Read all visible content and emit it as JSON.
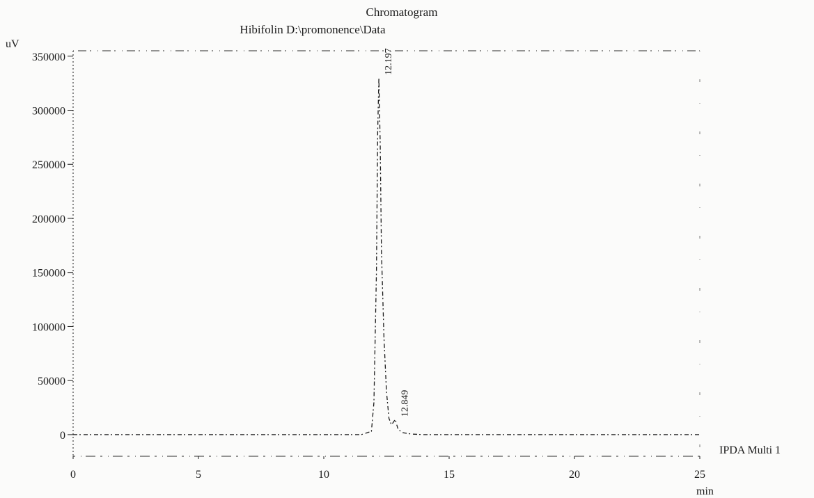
{
  "chart_data": {
    "type": "line",
    "title": "Chromatogram",
    "subtitle": "Hibifolin D:\\promonence\\Data",
    "ylabel": "uV",
    "xlabel": "min",
    "xlim": [
      0,
      25
    ],
    "ylim": [
      -20000,
      355000
    ],
    "x_ticks": [
      0,
      5,
      10,
      15,
      20,
      25
    ],
    "x_tick_labels": [
      "0",
      "5",
      "10",
      "15",
      "20",
      "25"
    ],
    "y_ticks": [
      0,
      50000,
      100000,
      150000,
      200000,
      250000,
      300000,
      350000
    ],
    "y_tick_labels": [
      "0",
      "50000",
      "100000",
      "150000",
      "200000",
      "250000",
      "300000",
      "350000"
    ],
    "grid": false,
    "legend_position": "right",
    "series": [
      {
        "name": "IPDA Multi 1",
        "color": "#1a1a1a",
        "x": [
          0,
          2,
          4,
          6,
          8,
          10,
          11.5,
          11.9,
          12.0,
          12.1,
          12.15,
          12.197,
          12.25,
          12.3,
          12.4,
          12.5,
          12.6,
          12.7,
          12.849,
          12.95,
          13.1,
          13.5,
          14,
          16,
          18,
          20,
          22,
          24,
          25
        ],
        "values": [
          0,
          0,
          0,
          0,
          0,
          0,
          0,
          3000,
          30000,
          150000,
          280000,
          330000,
          270000,
          170000,
          90000,
          40000,
          15000,
          9000,
          14000,
          6000,
          2000,
          500,
          0,
          0,
          0,
          0,
          0,
          0,
          0
        ]
      }
    ],
    "annotations": [
      {
        "x": 12.197,
        "y": 330000,
        "text": "12.197"
      },
      {
        "x": 12.849,
        "y": 14000,
        "text": "12.849"
      }
    ]
  }
}
